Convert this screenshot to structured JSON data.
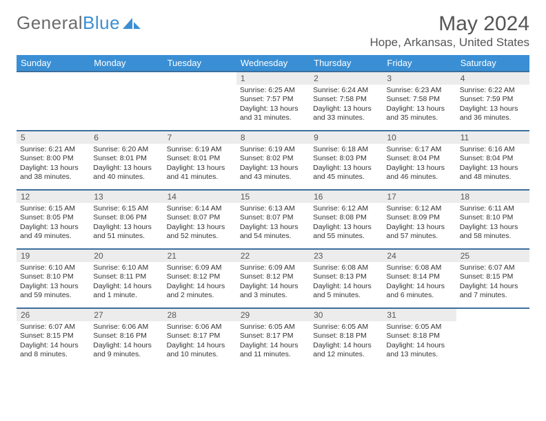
{
  "logo": {
    "text_gray": "General",
    "text_blue": "Blue"
  },
  "title": "May 2024",
  "location": "Hope, Arkansas, United States",
  "colors": {
    "header_bg": "#3a8fd4",
    "header_text": "#ffffff",
    "row_border": "#3a6e9c",
    "daynum_bg": "#ececec",
    "text": "#333333",
    "logo_gray": "#6b6b6b",
    "logo_blue": "#3a8fd4"
  },
  "day_labels": [
    "Sunday",
    "Monday",
    "Tuesday",
    "Wednesday",
    "Thursday",
    "Friday",
    "Saturday"
  ],
  "first_weekday": 3,
  "days": [
    {
      "n": 1,
      "sunrise": "6:25 AM",
      "sunset": "7:57 PM",
      "daylight": "13 hours and 31 minutes."
    },
    {
      "n": 2,
      "sunrise": "6:24 AM",
      "sunset": "7:58 PM",
      "daylight": "13 hours and 33 minutes."
    },
    {
      "n": 3,
      "sunrise": "6:23 AM",
      "sunset": "7:58 PM",
      "daylight": "13 hours and 35 minutes."
    },
    {
      "n": 4,
      "sunrise": "6:22 AM",
      "sunset": "7:59 PM",
      "daylight": "13 hours and 36 minutes."
    },
    {
      "n": 5,
      "sunrise": "6:21 AM",
      "sunset": "8:00 PM",
      "daylight": "13 hours and 38 minutes."
    },
    {
      "n": 6,
      "sunrise": "6:20 AM",
      "sunset": "8:01 PM",
      "daylight": "13 hours and 40 minutes."
    },
    {
      "n": 7,
      "sunrise": "6:19 AM",
      "sunset": "8:01 PM",
      "daylight": "13 hours and 41 minutes."
    },
    {
      "n": 8,
      "sunrise": "6:19 AM",
      "sunset": "8:02 PM",
      "daylight": "13 hours and 43 minutes."
    },
    {
      "n": 9,
      "sunrise": "6:18 AM",
      "sunset": "8:03 PM",
      "daylight": "13 hours and 45 minutes."
    },
    {
      "n": 10,
      "sunrise": "6:17 AM",
      "sunset": "8:04 PM",
      "daylight": "13 hours and 46 minutes."
    },
    {
      "n": 11,
      "sunrise": "6:16 AM",
      "sunset": "8:04 PM",
      "daylight": "13 hours and 48 minutes."
    },
    {
      "n": 12,
      "sunrise": "6:15 AM",
      "sunset": "8:05 PM",
      "daylight": "13 hours and 49 minutes."
    },
    {
      "n": 13,
      "sunrise": "6:15 AM",
      "sunset": "8:06 PM",
      "daylight": "13 hours and 51 minutes."
    },
    {
      "n": 14,
      "sunrise": "6:14 AM",
      "sunset": "8:07 PM",
      "daylight": "13 hours and 52 minutes."
    },
    {
      "n": 15,
      "sunrise": "6:13 AM",
      "sunset": "8:07 PM",
      "daylight": "13 hours and 54 minutes."
    },
    {
      "n": 16,
      "sunrise": "6:12 AM",
      "sunset": "8:08 PM",
      "daylight": "13 hours and 55 minutes."
    },
    {
      "n": 17,
      "sunrise": "6:12 AM",
      "sunset": "8:09 PM",
      "daylight": "13 hours and 57 minutes."
    },
    {
      "n": 18,
      "sunrise": "6:11 AM",
      "sunset": "8:10 PM",
      "daylight": "13 hours and 58 minutes."
    },
    {
      "n": 19,
      "sunrise": "6:10 AM",
      "sunset": "8:10 PM",
      "daylight": "13 hours and 59 minutes."
    },
    {
      "n": 20,
      "sunrise": "6:10 AM",
      "sunset": "8:11 PM",
      "daylight": "14 hours and 1 minute."
    },
    {
      "n": 21,
      "sunrise": "6:09 AM",
      "sunset": "8:12 PM",
      "daylight": "14 hours and 2 minutes."
    },
    {
      "n": 22,
      "sunrise": "6:09 AM",
      "sunset": "8:12 PM",
      "daylight": "14 hours and 3 minutes."
    },
    {
      "n": 23,
      "sunrise": "6:08 AM",
      "sunset": "8:13 PM",
      "daylight": "14 hours and 5 minutes."
    },
    {
      "n": 24,
      "sunrise": "6:08 AM",
      "sunset": "8:14 PM",
      "daylight": "14 hours and 6 minutes."
    },
    {
      "n": 25,
      "sunrise": "6:07 AM",
      "sunset": "8:15 PM",
      "daylight": "14 hours and 7 minutes."
    },
    {
      "n": 26,
      "sunrise": "6:07 AM",
      "sunset": "8:15 PM",
      "daylight": "14 hours and 8 minutes."
    },
    {
      "n": 27,
      "sunrise": "6:06 AM",
      "sunset": "8:16 PM",
      "daylight": "14 hours and 9 minutes."
    },
    {
      "n": 28,
      "sunrise": "6:06 AM",
      "sunset": "8:17 PM",
      "daylight": "14 hours and 10 minutes."
    },
    {
      "n": 29,
      "sunrise": "6:05 AM",
      "sunset": "8:17 PM",
      "daylight": "14 hours and 11 minutes."
    },
    {
      "n": 30,
      "sunrise": "6:05 AM",
      "sunset": "8:18 PM",
      "daylight": "14 hours and 12 minutes."
    },
    {
      "n": 31,
      "sunrise": "6:05 AM",
      "sunset": "8:18 PM",
      "daylight": "14 hours and 13 minutes."
    }
  ],
  "labels": {
    "sunrise": "Sunrise",
    "sunset": "Sunset",
    "daylight": "Daylight"
  }
}
